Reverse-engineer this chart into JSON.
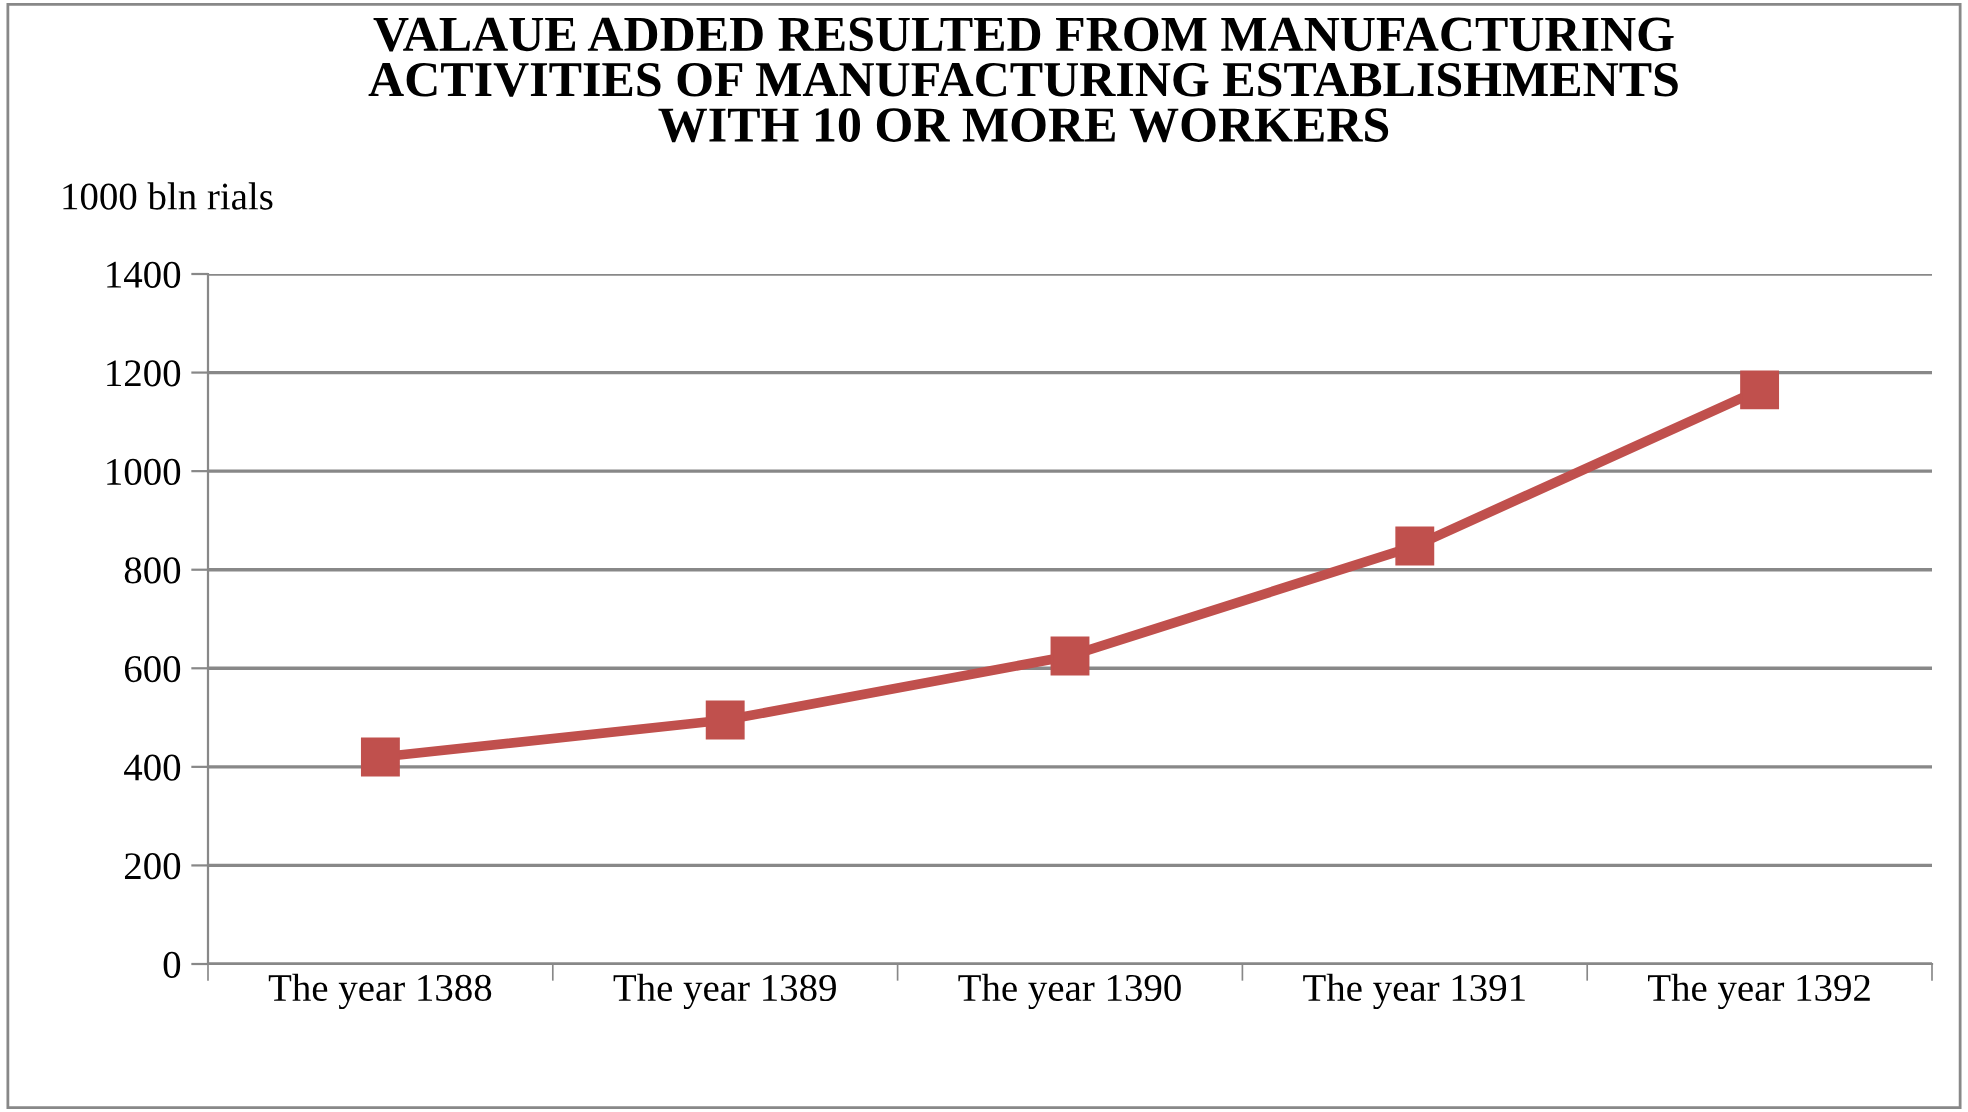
{
  "chart_data": {
    "type": "line",
    "title": "VALAUE ADDED RESULTED FROM MANUFACTURING\nACTIVITIES OF MANUFACTURING ESTABLISHMENTS\nWITH 10 OR MORE WORKERS",
    "ylabel": "1000 bln rials",
    "categories": [
      "The year 1388",
      "The year 1389",
      "The year 1390",
      "The year 1391",
      "The year 1392"
    ],
    "series": [
      {
        "color": "#c0504d",
        "values": [
          420,
          495,
          625,
          848,
          1165
        ]
      }
    ],
    "ylim": [
      0,
      1400
    ],
    "yticks": [
      0,
      200,
      400,
      600,
      800,
      1000,
      1200,
      1400
    ],
    "grid": "y",
    "marker": "square",
    "line_style": "solid"
  }
}
